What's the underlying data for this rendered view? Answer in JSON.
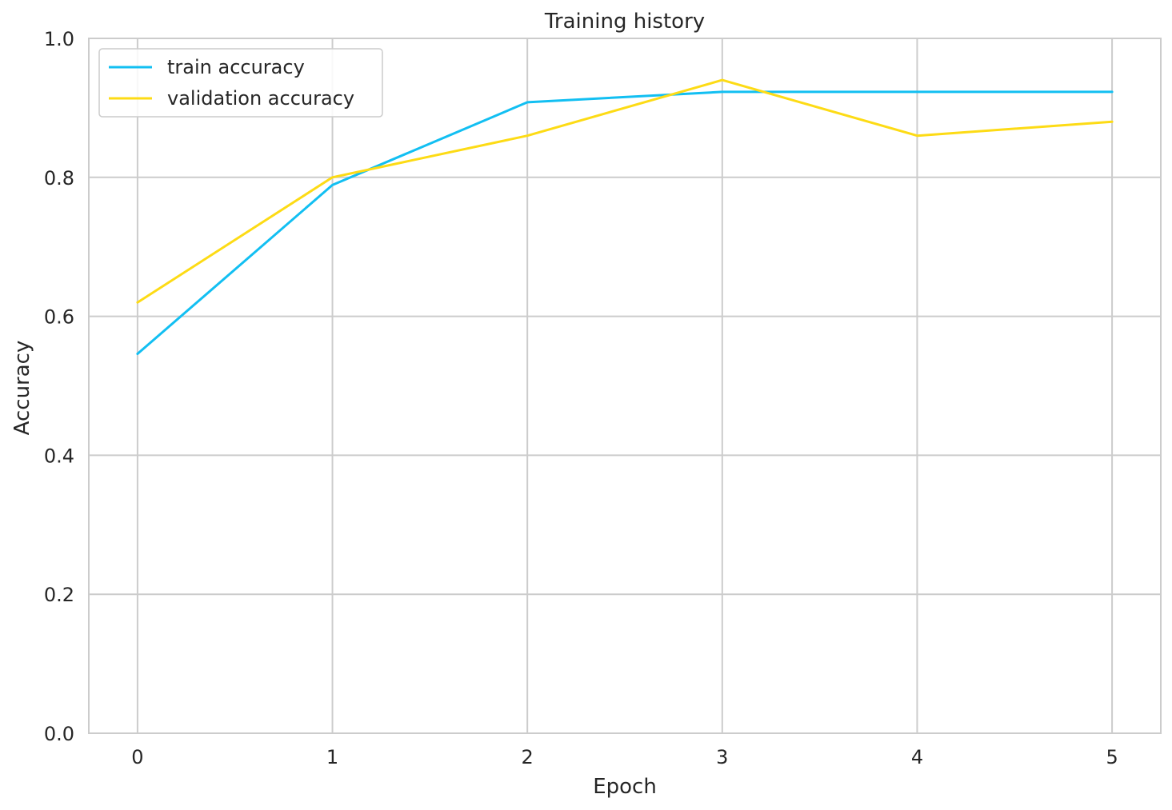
{
  "chart_data": {
    "type": "line",
    "title": "Training history",
    "xlabel": "Epoch",
    "ylabel": "Accuracy",
    "x": [
      0,
      1,
      2,
      3,
      4,
      5
    ],
    "xticks": [
      "0",
      "1",
      "2",
      "3",
      "4",
      "5"
    ],
    "yticks": [
      "0.0",
      "0.2",
      "0.4",
      "0.6",
      "0.8",
      "1.0"
    ],
    "xlim": [
      -0.25,
      5.25
    ],
    "ylim": [
      0,
      1
    ],
    "grid": true,
    "legend_position": "top-left",
    "series": [
      {
        "name": "train accuracy",
        "color": "#12bff2",
        "values": [
          0.546,
          0.789,
          0.908,
          0.923,
          0.923,
          0.923
        ]
      },
      {
        "name": "validation accuracy",
        "color": "#fddb15",
        "values": [
          0.62,
          0.8,
          0.86,
          0.94,
          0.86,
          0.88
        ]
      }
    ]
  }
}
